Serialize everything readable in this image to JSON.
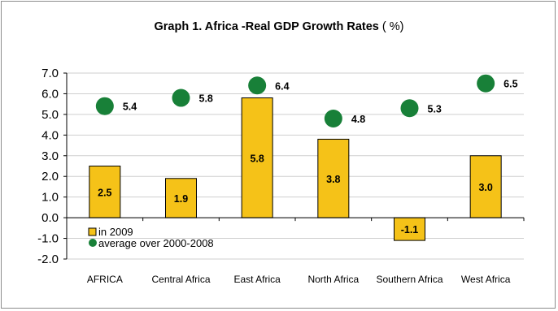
{
  "chart_data": {
    "type": "bar",
    "title": "Graph 1. Africa -Real GDP Growth Rates",
    "title_unit": "( %)",
    "categories": [
      "AFRICA",
      "Central Africa",
      "East Africa",
      "North Africa",
      "Southern Africa",
      "West Africa"
    ],
    "series": [
      {
        "name": "in 2009",
        "type": "bar",
        "values": [
          2.5,
          1.9,
          5.8,
          3.8,
          -1.1,
          3.0
        ],
        "labels": [
          "2.5",
          "1.9",
          "5.8",
          "3.8",
          "-1.1",
          "3.0"
        ]
      },
      {
        "name": "average over 2000-2008",
        "type": "scatter",
        "values": [
          5.4,
          5.8,
          6.4,
          4.8,
          5.3,
          6.5
        ],
        "labels": [
          "5.4",
          "5.8",
          "6.4",
          "4.8",
          "5.3",
          "6.5"
        ]
      }
    ],
    "ylim": [
      -2.0,
      7.0
    ],
    "yticks": [
      "7.0",
      "6.0",
      "5.0",
      "4.0",
      "3.0",
      "2.0",
      "1.0",
      "0.0",
      "-1.0",
      "-2.0"
    ],
    "xlabel": "",
    "ylabel": "",
    "grid": true,
    "legend": "inside-lower-left",
    "colors": {
      "bar": "#f5c218",
      "bar_edge": "#000000",
      "dot": "#188038",
      "grid": "#cfcfcf"
    }
  }
}
